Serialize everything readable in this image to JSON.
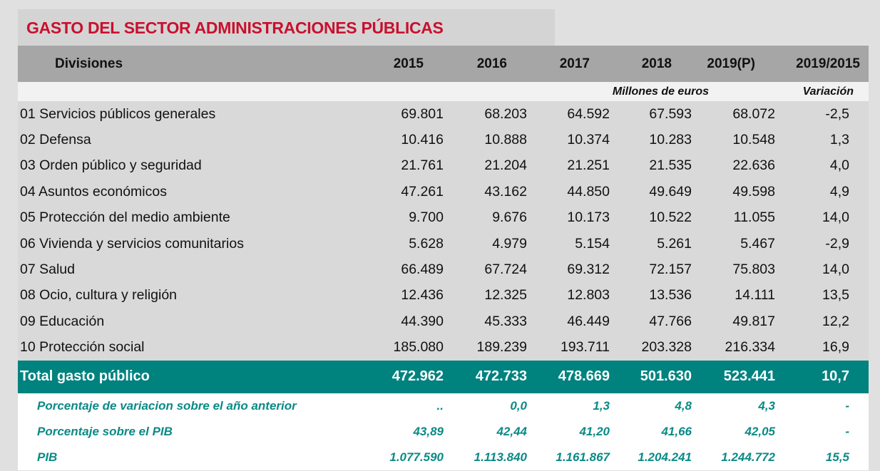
{
  "title": "GASTO DEL SECTOR ADMINISTRACIONES PÚBLICAS",
  "header": {
    "label": "Divisiones",
    "cols": [
      "2015",
      "2016",
      "2017",
      "2018",
      "2019(P)",
      "2019/2015"
    ]
  },
  "units": {
    "main": "Millones de euros",
    "variation": "Variación"
  },
  "rows": [
    {
      "label": "01 Servicios públicos generales",
      "values": [
        "69.801",
        "68.203",
        "64.592",
        "67.593",
        "68.072",
        "-2,5"
      ]
    },
    {
      "label": "02 Defensa",
      "values": [
        "10.416",
        "10.888",
        "10.374",
        "10.283",
        "10.548",
        "1,3"
      ]
    },
    {
      "label": "03 Orden público y seguridad",
      "values": [
        "21.761",
        "21.204",
        "21.251",
        "21.535",
        "22.636",
        "4,0"
      ]
    },
    {
      "label": "04 Asuntos económicos",
      "values": [
        "47.261",
        "43.162",
        "44.850",
        "49.649",
        "49.598",
        "4,9"
      ]
    },
    {
      "label": "05 Protección del medio ambiente",
      "values": [
        "9.700",
        "9.676",
        "10.173",
        "10.522",
        "11.055",
        "14,0"
      ]
    },
    {
      "label": "06 Vivienda y servicios comunitarios",
      "values": [
        "5.628",
        "4.979",
        "5.154",
        "5.261",
        "5.467",
        "-2,9"
      ]
    },
    {
      "label": "07 Salud",
      "values": [
        "66.489",
        "67.724",
        "69.312",
        "72.157",
        "75.803",
        "14,0"
      ]
    },
    {
      "label": "08 Ocio, cultura y religión",
      "values": [
        "12.436",
        "12.325",
        "12.803",
        "13.536",
        "14.111",
        "13,5"
      ]
    },
    {
      "label": "09 Educación",
      "values": [
        "44.390",
        "45.333",
        "46.449",
        "47.766",
        "49.817",
        "12,2"
      ]
    },
    {
      "label": "10 Protección social",
      "values": [
        "185.080",
        "189.239",
        "193.711",
        "203.328",
        "216.334",
        "16,9"
      ]
    }
  ],
  "total": {
    "label": "Total gasto público",
    "values": [
      "472.962",
      "472.733",
      "478.669",
      "501.630",
      "523.441",
      "10,7"
    ]
  },
  "footer": [
    {
      "label": "Porcentaje de variacion sobre el año anterior",
      "values": [
        "..",
        "0,0",
        "1,3",
        "4,8",
        "4,3",
        "-"
      ]
    },
    {
      "label": "Porcentaje sobre el PIB",
      "values": [
        "43,89",
        "42,44",
        "41,20",
        "41,66",
        "42,05",
        "-"
      ]
    },
    {
      "label": "PIB",
      "values": [
        "1.077.590",
        "1.113.840",
        "1.161.867",
        "1.204.241",
        "1.244.772",
        "15,5"
      ]
    }
  ],
  "colors": {
    "title": "#c8102e",
    "total_bg": "#00827f",
    "footer_text": "#0a8a86"
  }
}
